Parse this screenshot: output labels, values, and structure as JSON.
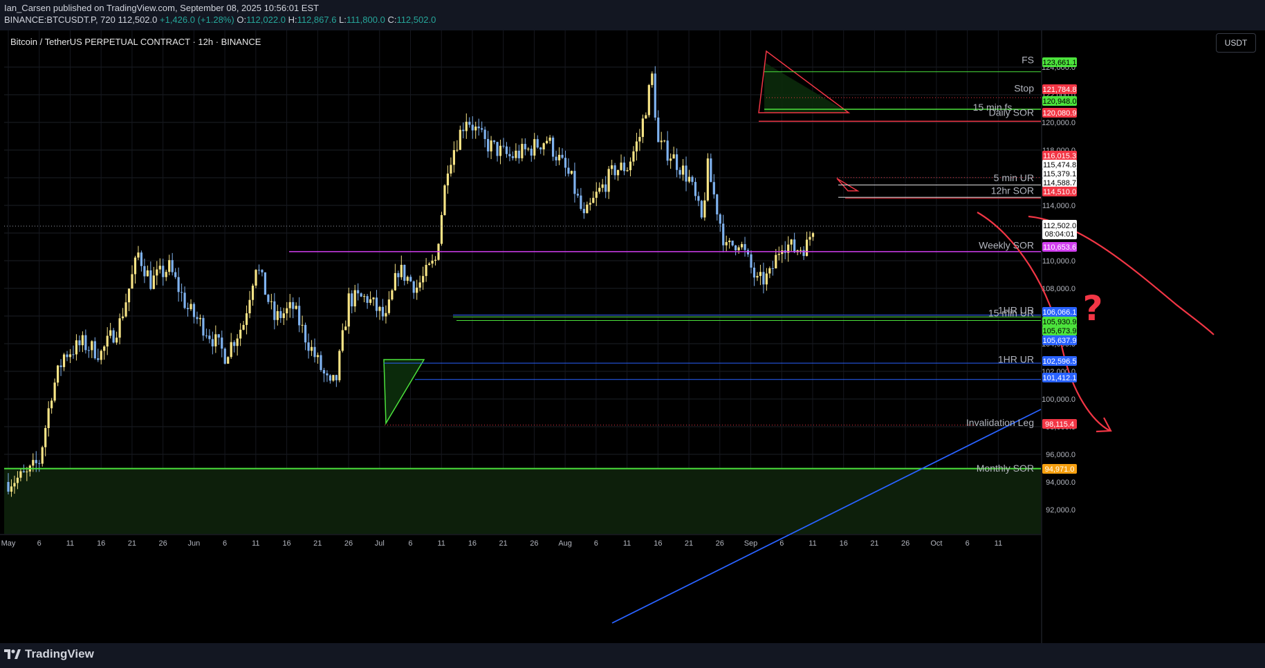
{
  "header": {
    "author": "Ian_Carsen",
    "published_text": "published on TradingView.com, September 08, 2025 10:56:01 EST",
    "symbol": "BINANCE:BTCUSDT.P, 720",
    "last": "112,502.0",
    "change": "+1,426.0 (+1.28%)",
    "o_label": "O:",
    "o_value": "112,022.0",
    "h_label": "H:",
    "h_value": "112,867.6",
    "l_label": "L:",
    "l_value": "111,800.0",
    "c_label": "C:",
    "c_value": "112,502.0"
  },
  "chart_title": "Bitcoin / TetherUS PERPETUAL CONTRACT · 12h · BINANCE",
  "currency": "USDT",
  "brand": "TradingView",
  "colors": {
    "bull": "#f7e486",
    "bear": "#7fb2ef",
    "green": "#4ce33c",
    "red": "#f23645",
    "magenta": "#d23ff0",
    "blue": "#2962ff",
    "orange": "#f59f0f"
  },
  "chart_data": {
    "type": "candlestick",
    "title": "Bitcoin / TetherUS PERPETUAL CONTRACT · 12h · BINANCE",
    "x_ticks": [
      "May",
      "6",
      "11",
      "16",
      "21",
      "26",
      "Jun",
      "6",
      "11",
      "16",
      "21",
      "26",
      "Jul",
      "6",
      "11",
      "16",
      "21",
      "26",
      "Aug",
      "6",
      "11",
      "16",
      "21",
      "26",
      "Sep",
      "6",
      "11",
      "16",
      "21",
      "26",
      "Oct",
      "6",
      "11"
    ],
    "y_ticks": [
      "124,000.0",
      "122,000.0",
      "120,000.0",
      "118,000.0",
      "116,000.0",
      "114,000.0",
      "112,000.0",
      "110,000.0",
      "108,000.0",
      "106,000.0",
      "104,000.0",
      "102,000.0",
      "100,000.0",
      "98,000.0",
      "96,000.0",
      "94,000.0",
      "92,000.0"
    ],
    "y_range": [
      90250,
      126650
    ],
    "current_price": 112502.0,
    "countdown": "08:04:01",
    "price_path": [
      [
        "2025-05-01",
        94000
      ],
      [
        "2025-05-04",
        94500
      ],
      [
        "2025-05-06",
        95500
      ],
      [
        "2025-05-08",
        100500
      ],
      [
        "2025-05-10",
        103200
      ],
      [
        "2025-05-13",
        104000
      ],
      [
        "2025-05-16",
        103300
      ],
      [
        "2025-05-19",
        105500
      ],
      [
        "2025-05-22",
        110500
      ],
      [
        "2025-05-24",
        108500
      ],
      [
        "2025-05-27",
        109500
      ],
      [
        "2025-05-30",
        106500
      ],
      [
        "2025-06-02",
        105000
      ],
      [
        "2025-06-05",
        103200
      ],
      [
        "2025-06-08",
        105500
      ],
      [
        "2025-06-10",
        109800
      ],
      [
        "2025-06-13",
        105800
      ],
      [
        "2025-06-16",
        106600
      ],
      [
        "2025-06-18",
        104500
      ],
      [
        "2025-06-22",
        100800
      ],
      [
        "2025-06-23",
        101500
      ],
      [
        "2025-06-25",
        107200
      ],
      [
        "2025-06-28",
        107300
      ],
      [
        "2025-07-01",
        105700
      ],
      [
        "2025-07-03",
        109400
      ],
      [
        "2025-07-06",
        108100
      ],
      [
        "2025-07-09",
        110000
      ],
      [
        "2025-07-11",
        117000
      ],
      [
        "2025-07-14",
        120400
      ],
      [
        "2025-07-17",
        118500
      ],
      [
        "2025-07-21",
        117500
      ],
      [
        "2025-07-24",
        118000
      ],
      [
        "2025-07-27",
        118800
      ],
      [
        "2025-07-31",
        115800
      ],
      [
        "2025-08-02",
        113000
      ],
      [
        "2025-08-04",
        114700
      ],
      [
        "2025-08-07",
        116600
      ],
      [
        "2025-08-09",
        116800
      ],
      [
        "2025-08-11",
        119000
      ],
      [
        "2025-08-13",
        123300
      ],
      [
        "2025-08-14",
        118400
      ],
      [
        "2025-08-16",
        117700
      ],
      [
        "2025-08-19",
        115900
      ],
      [
        "2025-08-21",
        112900
      ],
      [
        "2025-08-22",
        116700
      ],
      [
        "2025-08-25",
        110800
      ],
      [
        "2025-08-27",
        111500
      ],
      [
        "2025-08-30",
        108400
      ],
      [
        "2025-09-01",
        108900
      ],
      [
        "2025-09-03",
        111400
      ],
      [
        "2025-09-05",
        110800
      ],
      [
        "2025-09-07",
        111100
      ],
      [
        "2025-09-08",
        112502
      ]
    ],
    "levels": [
      {
        "label": "FS",
        "price": 123661.1,
        "tag": "123,661.1",
        "color": "#4ce33c"
      },
      {
        "label": "Stop",
        "price": 121784.8,
        "tag": "121,784.8",
        "color": "#f23645"
      },
      {
        "label": "15 min fs",
        "price": 120948.0,
        "tag": "120,948.0",
        "color": "#4ce33c"
      },
      {
        "label": "Daily SOR",
        "price": 120080.9,
        "tag": "120,080.9",
        "color": "#f23645"
      },
      {
        "label": "",
        "price": 116015.3,
        "tag": "116,015.3",
        "color": "#f23645"
      },
      {
        "label": "",
        "price": 115474.8,
        "tag": "115,474.8",
        "color": "#ffffff"
      },
      {
        "label": "",
        "price": 115379.1,
        "tag": "115,379.1",
        "color": "#ffffff"
      },
      {
        "label": "5 min UR",
        "price": 114588.7,
        "tag": "114,588.7",
        "color": "#ffffff"
      },
      {
        "label": "12hr SOR",
        "price": 114510.0,
        "tag": "114,510.0",
        "color": "#f23645"
      },
      {
        "label": "Weekly SOR",
        "price": 110653.6,
        "tag": "110,653.6",
        "color": "#d23ff0"
      },
      {
        "label": "1HR UR",
        "price": 106066.1,
        "tag": "106,066.1",
        "color": "#2962ff"
      },
      {
        "label": "15 min UR",
        "price": 105930.9,
        "tag": "105,930.9",
        "color": "#4ce33c"
      },
      {
        "label": "",
        "price": 105673.9,
        "tag": "105,673.9",
        "color": "#4ce33c"
      },
      {
        "label": "",
        "price": 105637.9,
        "tag": "105,637.9",
        "color": "#2962ff"
      },
      {
        "label": "1HR UR",
        "price": 102596.5,
        "tag": "102,596.5",
        "color": "#2962ff"
      },
      {
        "label": "",
        "price": 101412.1,
        "tag": "101,412.1",
        "color": "#2962ff"
      },
      {
        "label": "Invalidation Leg",
        "price": 98115.4,
        "tag": "98,115.4",
        "color": "#f23645"
      },
      {
        "label": "Monthly SOR",
        "price": 94971.0,
        "tag": "94,971.0",
        "color": "#f59f0f"
      }
    ],
    "annotations": [
      "?"
    ]
  }
}
